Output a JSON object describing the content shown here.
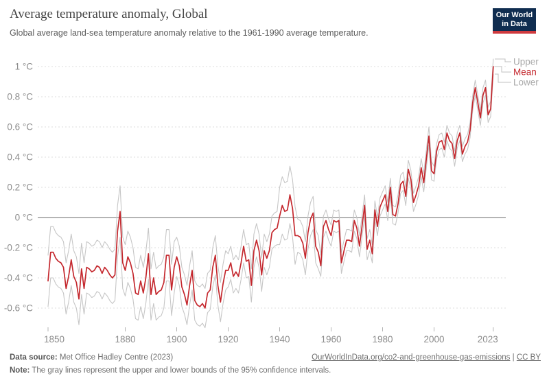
{
  "header": {
    "title": "Average temperature anomaly, Global",
    "subtitle": "Global average land-sea temperature anomaly relative to the 1961-1990 average temperature."
  },
  "logo": {
    "line1": "Our World",
    "line2": "in Data",
    "bg_color": "#102d50",
    "bar_color": "#cf3a3e"
  },
  "legend": {
    "items": [
      {
        "label": "Upper",
        "color": "#a9a9a9"
      },
      {
        "label": "Mean",
        "color": "#c4272d"
      },
      {
        "label": "Lower",
        "color": "#a9a9a9"
      }
    ]
  },
  "footer": {
    "source_label": "Data source:",
    "source_text": "Met Office Hadley Centre (2023)",
    "link_text": "OurWorldInData.org/co2-and-greenhouse-gas-emissions",
    "separator": "|",
    "license_text": "CC BY",
    "note_label": "Note:",
    "note_text": "The gray lines represent the upper and lower bounds of the 95% confidence intervals."
  },
  "colors": {
    "grid": "#dedede",
    "zero_line": "#9b9b9b",
    "axis_text": "#8c8c8c",
    "tick": "#b3b3b3",
    "connector": "#c0c0c0"
  },
  "chart_data": {
    "type": "line",
    "title": "Average temperature anomaly, Global",
    "xlabel": "",
    "ylabel": "",
    "x_start": 1850,
    "x_end": 2023,
    "x_step": 1,
    "ylim": [
      -0.77,
      1.07
    ],
    "grid": true,
    "legend_position": "right-end",
    "yticks": [
      {
        "value": 1,
        "label": "1 °C"
      },
      {
        "value": 0.8,
        "label": "0.8 °C"
      },
      {
        "value": 0.6,
        "label": "0.6 °C"
      },
      {
        "value": 0.4,
        "label": "0.4 °C"
      },
      {
        "value": 0.2,
        "label": "0.2 °C"
      },
      {
        "value": 0,
        "label": "0 °C"
      },
      {
        "value": -0.2,
        "label": "-0.2 °C"
      },
      {
        "value": -0.4,
        "label": "-0.4 °C"
      },
      {
        "value": -0.6,
        "label": "-0.6 °C"
      }
    ],
    "xticks": [
      {
        "year": 1850,
        "label": "1850"
      },
      {
        "year": 1880,
        "label": "1880"
      },
      {
        "year": 1900,
        "label": "1900"
      },
      {
        "year": 1920,
        "label": "1920"
      },
      {
        "year": 1940,
        "label": "1940"
      },
      {
        "year": 1960,
        "label": "1960"
      },
      {
        "year": 1980,
        "label": "1980"
      },
      {
        "year": 2000,
        "label": "2000"
      },
      {
        "year": 2023,
        "label": "2023"
      }
    ],
    "series": [
      {
        "name": "Upper",
        "color": "#c6c6c6",
        "width": 1.1,
        "values": [
          -0.25,
          -0.06,
          -0.06,
          -0.1,
          -0.12,
          -0.13,
          -0.16,
          -0.3,
          -0.22,
          -0.11,
          -0.22,
          -0.26,
          -0.37,
          -0.17,
          -0.3,
          -0.16,
          -0.17,
          -0.19,
          -0.18,
          -0.15,
          -0.16,
          -0.2,
          -0.16,
          -0.18,
          -0.21,
          -0.23,
          -0.21,
          0.08,
          0.21,
          -0.13,
          -0.18,
          -0.09,
          -0.13,
          -0.2,
          -0.33,
          -0.34,
          -0.25,
          -0.33,
          -0.23,
          -0.07,
          -0.34,
          -0.23,
          -0.34,
          -0.32,
          -0.31,
          -0.26,
          -0.08,
          -0.08,
          -0.31,
          -0.16,
          -0.13,
          -0.19,
          -0.33,
          -0.38,
          -0.45,
          -0.32,
          -0.22,
          -0.42,
          -0.45,
          -0.46,
          -0.44,
          -0.47,
          -0.37,
          -0.35,
          -0.2,
          -0.12,
          -0.32,
          -0.43,
          -0.31,
          -0.22,
          -0.24,
          -0.19,
          -0.28,
          -0.25,
          -0.28,
          -0.19,
          -0.08,
          -0.18,
          -0.17,
          -0.34,
          -0.11,
          -0.04,
          -0.11,
          -0.27,
          -0.11,
          -0.16,
          -0.11,
          0.01,
          0.03,
          0.04,
          0.2,
          0.27,
          0.23,
          0.24,
          0.34,
          0.25,
          0.07,
          -0.01,
          -0.02,
          -0.06,
          -0.16,
          0.01,
          0.1,
          0.14,
          -0.08,
          -0.12,
          -0.25,
          0.01,
          0.05,
          -0.01,
          -0.05,
          0.05,
          0.04,
          0.05,
          -0.23,
          -0.15,
          -0.08,
          -0.08,
          -0.09,
          0.05,
          0.0,
          -0.12,
          0.01,
          0.15,
          -0.14,
          -0.08,
          -0.18,
          0.11,
          0.0,
          0.13,
          0.17,
          0.21,
          0.1,
          0.26,
          0.08,
          0.07,
          0.15,
          0.28,
          0.3,
          0.2,
          0.38,
          0.31,
          0.16,
          0.21,
          0.27,
          0.39,
          0.29,
          0.45,
          0.6,
          0.37,
          0.34,
          0.49,
          0.55,
          0.56,
          0.5,
          0.61,
          0.56,
          0.54,
          0.44,
          0.56,
          0.61,
          0.47,
          0.52,
          0.55,
          0.63,
          0.81,
          0.91,
          0.81,
          0.71,
          0.86,
          0.91,
          0.73,
          0.77,
          1.05
        ]
      },
      {
        "name": "Lower",
        "color": "#c6c6c6",
        "width": 1.1,
        "values": [
          -0.59,
          -0.4,
          -0.4,
          -0.44,
          -0.46,
          -0.47,
          -0.5,
          -0.64,
          -0.56,
          -0.45,
          -0.56,
          -0.6,
          -0.71,
          -0.51,
          -0.64,
          -0.5,
          -0.51,
          -0.53,
          -0.52,
          -0.49,
          -0.5,
          -0.54,
          -0.5,
          -0.52,
          -0.55,
          -0.57,
          -0.55,
          -0.26,
          -0.13,
          -0.47,
          -0.52,
          -0.43,
          -0.47,
          -0.54,
          -0.67,
          -0.68,
          -0.59,
          -0.67,
          -0.57,
          -0.41,
          -0.68,
          -0.57,
          -0.68,
          -0.66,
          -0.65,
          -0.6,
          -0.42,
          -0.42,
          -0.65,
          -0.5,
          -0.39,
          -0.45,
          -0.59,
          -0.64,
          -0.71,
          -0.58,
          -0.48,
          -0.68,
          -0.71,
          -0.72,
          -0.7,
          -0.73,
          -0.63,
          -0.61,
          -0.46,
          -0.38,
          -0.58,
          -0.69,
          -0.57,
          -0.48,
          -0.46,
          -0.41,
          -0.5,
          -0.47,
          -0.5,
          -0.41,
          -0.3,
          -0.4,
          -0.39,
          -0.56,
          -0.33,
          -0.26,
          -0.33,
          -0.49,
          -0.33,
          -0.38,
          -0.33,
          -0.21,
          -0.19,
          -0.18,
          -0.18,
          -0.11,
          -0.15,
          -0.14,
          -0.04,
          -0.13,
          -0.31,
          -0.23,
          -0.24,
          -0.28,
          -0.38,
          -0.21,
          -0.12,
          -0.08,
          -0.3,
          -0.34,
          -0.39,
          -0.13,
          -0.09,
          -0.15,
          -0.19,
          -0.09,
          -0.1,
          -0.09,
          -0.37,
          -0.29,
          -0.22,
          -0.22,
          -0.23,
          -0.09,
          -0.14,
          -0.26,
          -0.13,
          0.01,
          -0.28,
          -0.22,
          -0.3,
          -0.01,
          -0.12,
          0.01,
          0.05,
          0.09,
          -0.02,
          0.14,
          -0.04,
          -0.05,
          0.03,
          0.16,
          0.18,
          0.08,
          0.26,
          0.19,
          0.04,
          0.09,
          0.15,
          0.27,
          0.17,
          0.33,
          0.48,
          0.25,
          0.24,
          0.39,
          0.45,
          0.46,
          0.4,
          0.51,
          0.46,
          0.44,
          0.34,
          0.46,
          0.51,
          0.37,
          0.42,
          0.45,
          0.53,
          0.71,
          0.81,
          0.71,
          0.61,
          0.76,
          0.81,
          0.63,
          0.67,
          0.95
        ]
      },
      {
        "name": "Mean",
        "color": "#c4272d",
        "width": 1.7,
        "values": [
          -0.42,
          -0.23,
          -0.23,
          -0.27,
          -0.29,
          -0.3,
          -0.33,
          -0.47,
          -0.39,
          -0.28,
          -0.39,
          -0.43,
          -0.54,
          -0.34,
          -0.47,
          -0.33,
          -0.34,
          -0.36,
          -0.35,
          -0.32,
          -0.33,
          -0.37,
          -0.33,
          -0.35,
          -0.38,
          -0.4,
          -0.38,
          -0.09,
          0.04,
          -0.3,
          -0.35,
          -0.26,
          -0.3,
          -0.37,
          -0.5,
          -0.51,
          -0.42,
          -0.5,
          -0.4,
          -0.24,
          -0.51,
          -0.4,
          -0.51,
          -0.49,
          -0.48,
          -0.43,
          -0.25,
          -0.25,
          -0.48,
          -0.33,
          -0.26,
          -0.32,
          -0.46,
          -0.51,
          -0.58,
          -0.45,
          -0.35,
          -0.55,
          -0.58,
          -0.59,
          -0.57,
          -0.6,
          -0.5,
          -0.48,
          -0.33,
          -0.25,
          -0.45,
          -0.56,
          -0.44,
          -0.35,
          -0.35,
          -0.3,
          -0.39,
          -0.36,
          -0.39,
          -0.3,
          -0.19,
          -0.29,
          -0.28,
          -0.45,
          -0.22,
          -0.15,
          -0.22,
          -0.38,
          -0.22,
          -0.27,
          -0.22,
          -0.1,
          -0.08,
          -0.07,
          0.01,
          0.08,
          0.04,
          0.05,
          0.15,
          0.06,
          -0.12,
          -0.12,
          -0.13,
          -0.17,
          -0.27,
          -0.1,
          -0.01,
          0.03,
          -0.19,
          -0.23,
          -0.32,
          -0.06,
          -0.02,
          -0.08,
          -0.12,
          -0.02,
          -0.03,
          -0.02,
          -0.3,
          -0.22,
          -0.15,
          -0.15,
          -0.16,
          -0.02,
          -0.07,
          -0.19,
          -0.06,
          0.08,
          -0.21,
          -0.15,
          -0.24,
          0.05,
          -0.06,
          0.07,
          0.11,
          0.15,
          0.04,
          0.2,
          0.02,
          0.01,
          0.09,
          0.22,
          0.24,
          0.14,
          0.32,
          0.25,
          0.1,
          0.15,
          0.21,
          0.33,
          0.23,
          0.39,
          0.54,
          0.31,
          0.29,
          0.44,
          0.5,
          0.51,
          0.45,
          0.56,
          0.51,
          0.49,
          0.39,
          0.51,
          0.56,
          0.42,
          0.47,
          0.5,
          0.58,
          0.76,
          0.86,
          0.76,
          0.66,
          0.81,
          0.86,
          0.68,
          0.72,
          1.0
        ]
      }
    ]
  }
}
